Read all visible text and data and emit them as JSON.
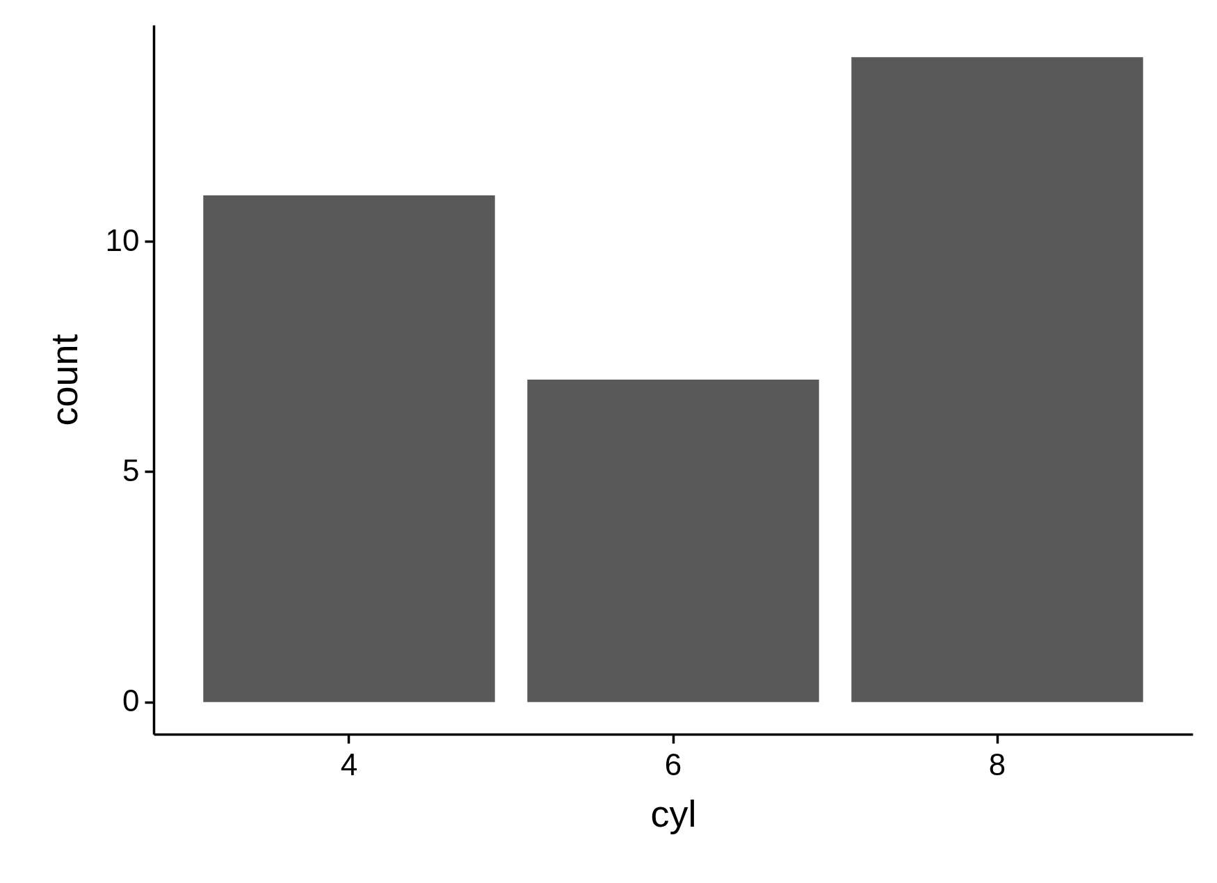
{
  "chart_data": {
    "type": "bar",
    "xlabel": "cyl",
    "ylabel": "count",
    "categories": [
      "4",
      "6",
      "8"
    ],
    "values": [
      11,
      7,
      14
    ],
    "color": "#595959",
    "ylim": [
      -0.7,
      14.7
    ],
    "yticks": [
      0,
      5,
      10
    ]
  }
}
